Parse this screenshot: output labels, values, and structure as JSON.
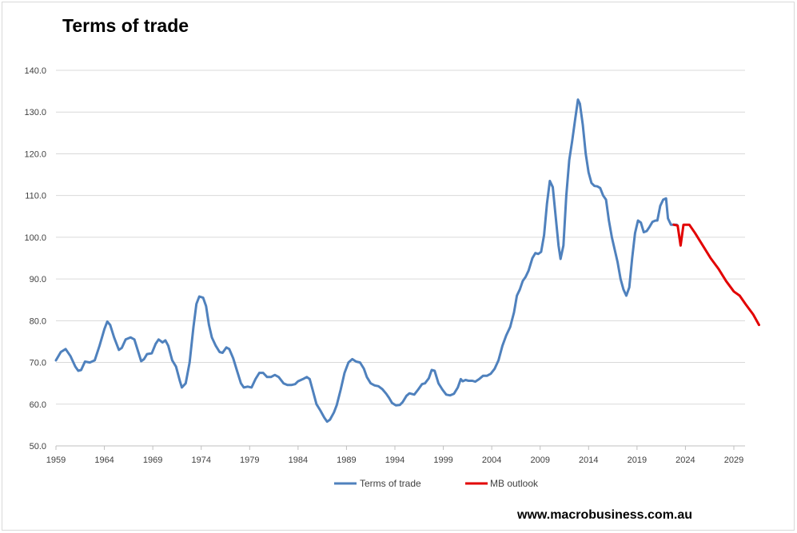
{
  "chart_data": {
    "type": "line",
    "title": "Terms of trade",
    "xlabel": "",
    "ylabel": "",
    "ylim": [
      50,
      140
    ],
    "xlim": [
      1959,
      2030
    ],
    "y_ticks": [
      50,
      60,
      70,
      80,
      90,
      100,
      110,
      120,
      130,
      140
    ],
    "y_tick_labels": [
      "50.0",
      "60.0",
      "70.0",
      "80.0",
      "90.0",
      "100.0",
      "110.0",
      "120.0",
      "130.0",
      "140.0"
    ],
    "x_ticks": [
      1959,
      1964,
      1969,
      1974,
      1979,
      1984,
      1989,
      1994,
      1999,
      2004,
      2009,
      2014,
      2019,
      2024,
      2029
    ],
    "x_tick_labels": [
      "1959",
      "1964",
      "1969",
      "1974",
      "1979",
      "1984",
      "1989",
      "1994",
      "1999",
      "2004",
      "2009",
      "2014",
      "2019",
      "2024",
      "2029"
    ],
    "grid": true,
    "legend_position": "bottom",
    "series": [
      {
        "name": "Terms of trade",
        "color": "#4f81bd",
        "points": [
          [
            1959.0,
            70.5
          ],
          [
            1959.5,
            72.5
          ],
          [
            1960.0,
            73.2
          ],
          [
            1960.5,
            71.5
          ],
          [
            1961.0,
            69.0
          ],
          [
            1961.3,
            68.0
          ],
          [
            1961.6,
            68.2
          ],
          [
            1962.0,
            70.2
          ],
          [
            1962.5,
            70.0
          ],
          [
            1963.0,
            70.5
          ],
          [
            1963.5,
            74.0
          ],
          [
            1964.0,
            78.0
          ],
          [
            1964.3,
            79.8
          ],
          [
            1964.6,
            79.0
          ],
          [
            1965.0,
            76.0
          ],
          [
            1965.5,
            73.0
          ],
          [
            1965.8,
            73.5
          ],
          [
            1966.2,
            75.5
          ],
          [
            1966.7,
            76.0
          ],
          [
            1967.1,
            75.5
          ],
          [
            1967.5,
            72.5
          ],
          [
            1967.8,
            70.3
          ],
          [
            1968.1,
            70.8
          ],
          [
            1968.4,
            72.0
          ],
          [
            1968.9,
            72.2
          ],
          [
            1969.3,
            74.5
          ],
          [
            1969.6,
            75.5
          ],
          [
            1970.0,
            74.8
          ],
          [
            1970.3,
            75.3
          ],
          [
            1970.6,
            74.0
          ],
          [
            1971.0,
            70.5
          ],
          [
            1971.4,
            69.0
          ],
          [
            1971.8,
            65.5
          ],
          [
            1972.0,
            64.0
          ],
          [
            1972.4,
            65.0
          ],
          [
            1972.8,
            70.0
          ],
          [
            1973.2,
            78.5
          ],
          [
            1973.5,
            84.0
          ],
          [
            1973.8,
            85.8
          ],
          [
            1974.2,
            85.5
          ],
          [
            1974.5,
            83.5
          ],
          [
            1974.8,
            79.0
          ],
          [
            1975.1,
            76.0
          ],
          [
            1975.5,
            74.0
          ],
          [
            1975.9,
            72.5
          ],
          [
            1976.2,
            72.3
          ],
          [
            1976.6,
            73.6
          ],
          [
            1976.9,
            73.2
          ],
          [
            1977.3,
            71.0
          ],
          [
            1977.7,
            68.0
          ],
          [
            1978.1,
            65.0
          ],
          [
            1978.4,
            64.0
          ],
          [
            1978.8,
            64.2
          ],
          [
            1979.2,
            64.0
          ],
          [
            1979.6,
            66.0
          ],
          [
            1980.0,
            67.5
          ],
          [
            1980.4,
            67.5
          ],
          [
            1980.8,
            66.5
          ],
          [
            1981.2,
            66.5
          ],
          [
            1981.6,
            67.0
          ],
          [
            1982.0,
            66.5
          ],
          [
            1982.5,
            65.0
          ],
          [
            1982.9,
            64.6
          ],
          [
            1983.3,
            64.6
          ],
          [
            1983.7,
            64.8
          ],
          [
            1984.0,
            65.5
          ],
          [
            1984.5,
            66.0
          ],
          [
            1984.9,
            66.5
          ],
          [
            1985.2,
            66.0
          ],
          [
            1985.5,
            63.5
          ],
          [
            1985.9,
            60.0
          ],
          [
            1986.3,
            58.5
          ],
          [
            1986.7,
            56.8
          ],
          [
            1987.0,
            55.8
          ],
          [
            1987.3,
            56.3
          ],
          [
            1987.7,
            58.0
          ],
          [
            1988.0,
            59.8
          ],
          [
            1988.4,
            63.5
          ],
          [
            1988.8,
            67.5
          ],
          [
            1989.2,
            70.0
          ],
          [
            1989.6,
            70.8
          ],
          [
            1990.0,
            70.2
          ],
          [
            1990.4,
            70.0
          ],
          [
            1990.8,
            68.5
          ],
          [
            1991.1,
            66.5
          ],
          [
            1991.5,
            65.0
          ],
          [
            1991.9,
            64.5
          ],
          [
            1992.3,
            64.3
          ],
          [
            1992.7,
            63.6
          ],
          [
            1993.1,
            62.5
          ],
          [
            1993.4,
            61.5
          ],
          [
            1993.7,
            60.3
          ],
          [
            1994.1,
            59.7
          ],
          [
            1994.5,
            59.8
          ],
          [
            1994.8,
            60.5
          ],
          [
            1995.2,
            62.0
          ],
          [
            1995.5,
            62.6
          ],
          [
            1996.0,
            62.3
          ],
          [
            1996.4,
            63.5
          ],
          [
            1996.8,
            64.8
          ],
          [
            1997.1,
            65.0
          ],
          [
            1997.5,
            66.2
          ],
          [
            1997.8,
            68.2
          ],
          [
            1998.1,
            68.0
          ],
          [
            1998.5,
            65.0
          ],
          [
            1998.9,
            63.5
          ],
          [
            1999.3,
            62.3
          ],
          [
            1999.7,
            62.1
          ],
          [
            2000.1,
            62.5
          ],
          [
            2000.5,
            64.0
          ],
          [
            2000.8,
            66.0
          ],
          [
            2001.0,
            65.5
          ],
          [
            2001.3,
            65.8
          ],
          [
            2001.6,
            65.6
          ],
          [
            2002.0,
            65.6
          ],
          [
            2002.3,
            65.4
          ],
          [
            2002.7,
            66.0
          ],
          [
            2003.1,
            66.8
          ],
          [
            2003.5,
            66.8
          ],
          [
            2003.9,
            67.3
          ],
          [
            2004.3,
            68.5
          ],
          [
            2004.7,
            70.5
          ],
          [
            2005.1,
            74.0
          ],
          [
            2005.5,
            76.5
          ],
          [
            2005.9,
            78.5
          ],
          [
            2006.3,
            82.0
          ],
          [
            2006.6,
            86.0
          ],
          [
            2006.9,
            87.5
          ],
          [
            2007.2,
            89.5
          ],
          [
            2007.5,
            90.5
          ],
          [
            2007.8,
            92.0
          ],
          [
            2008.2,
            95.0
          ],
          [
            2008.5,
            96.2
          ],
          [
            2008.8,
            96.0
          ],
          [
            2009.1,
            96.5
          ],
          [
            2009.4,
            100.5
          ],
          [
            2009.7,
            108.0
          ],
          [
            2010.0,
            113.5
          ],
          [
            2010.3,
            112.0
          ],
          [
            2010.6,
            105.0
          ],
          [
            2010.9,
            98.0
          ],
          [
            2011.1,
            94.8
          ],
          [
            2011.4,
            98.0
          ],
          [
            2011.7,
            110.0
          ],
          [
            2012.0,
            118.5
          ],
          [
            2012.3,
            123.0
          ],
          [
            2012.6,
            128.0
          ],
          [
            2012.9,
            133.0
          ],
          [
            2013.1,
            132.0
          ],
          [
            2013.4,
            127.0
          ],
          [
            2013.7,
            120.0
          ],
          [
            2014.0,
            115.5
          ],
          [
            2014.3,
            113.0
          ],
          [
            2014.6,
            112.3
          ],
          [
            2014.9,
            112.2
          ],
          [
            2015.2,
            111.8
          ],
          [
            2015.5,
            110.0
          ],
          [
            2015.8,
            109.0
          ],
          [
            2016.1,
            104.0
          ],
          [
            2016.4,
            100.0
          ],
          [
            2016.7,
            97.0
          ],
          [
            2017.0,
            94.0
          ],
          [
            2017.3,
            90.0
          ],
          [
            2017.6,
            87.5
          ],
          [
            2017.9,
            86.0
          ],
          [
            2018.2,
            88.0
          ],
          [
            2018.5,
            95.0
          ],
          [
            2018.8,
            101.0
          ],
          [
            2019.1,
            104.0
          ],
          [
            2019.4,
            103.5
          ],
          [
            2019.7,
            101.2
          ],
          [
            2020.0,
            101.5
          ],
          [
            2020.3,
            102.5
          ],
          [
            2020.6,
            103.7
          ],
          [
            2020.9,
            104.0
          ],
          [
            2021.1,
            104.0
          ],
          [
            2021.4,
            107.5
          ],
          [
            2021.7,
            109.0
          ],
          [
            2022.0,
            109.3
          ],
          [
            2022.2,
            104.5
          ],
          [
            2022.5,
            103.0
          ],
          [
            2022.8,
            103.0
          ],
          [
            2023.1,
            103.0
          ]
        ]
      },
      {
        "name": "MB outlook",
        "color": "#e20000",
        "points": [
          [
            2022.8,
            103.0
          ],
          [
            2023.2,
            102.8
          ],
          [
            2023.5,
            98.0
          ],
          [
            2023.8,
            103.0
          ],
          [
            2024.4,
            103.0
          ],
          [
            2025.0,
            101.0
          ],
          [
            2025.8,
            98.0
          ],
          [
            2026.6,
            95.0
          ],
          [
            2027.4,
            92.5
          ],
          [
            2028.2,
            89.5
          ],
          [
            2029.0,
            87.0
          ],
          [
            2029.6,
            86.0
          ],
          [
            2030.2,
            84.0
          ],
          [
            2031.0,
            81.5
          ],
          [
            2031.6,
            79.0
          ]
        ]
      }
    ]
  },
  "footer": {
    "website": "www.macrobusiness.com.au"
  }
}
